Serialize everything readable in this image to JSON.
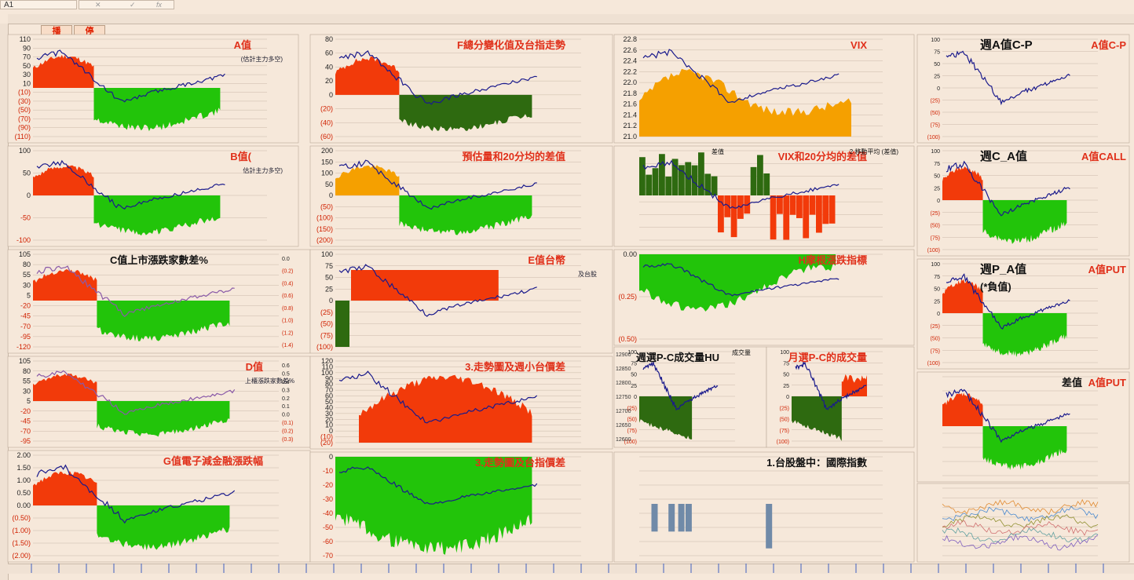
{
  "namebox": {
    "cell_ref": "A1"
  },
  "buttons": {
    "play": "播",
    "stop": "停"
  },
  "colors": {
    "red": "#f23a0a",
    "green": "#22c40a",
    "darkgreen": "#2e6a10",
    "orange": "#f5a000",
    "navy": "#1a1a8c",
    "purple": "#8a5aa8",
    "panel_bg": "#f6e8da"
  },
  "panels": [
    {
      "title": "A值",
      "subtitle": "(估計主力多空)",
      "ticks": [
        "110",
        "90",
        "70",
        "50",
        "30",
        "10",
        "(10)",
        "(30)",
        "(50)",
        "(70)",
        "(90)",
        "(110)"
      ]
    },
    {
      "title": "F總分變化值及台指走勢",
      "ticks": [
        "80",
        "60",
        "40",
        "20",
        "0",
        "(20)",
        "(40)",
        "(60)"
      ]
    },
    {
      "title": "VIX",
      "ticks": [
        "22.8",
        "22.6",
        "22.4",
        "22.2",
        "22.0",
        "21.8",
        "21.6",
        "21.4",
        "21.2",
        "21.0"
      ]
    },
    {
      "title": "週A值C-P",
      "title2": "A值C-P",
      "ticks": [
        "100",
        "75",
        "50",
        "25",
        "0",
        "(25)",
        "(50)",
        "(75)",
        "(100)"
      ]
    },
    {
      "title": "B值(",
      "subtitle": "估計主力多空)",
      "ticks": [
        "100",
        "50",
        "0",
        "-50",
        "-100"
      ]
    },
    {
      "title": "預估量和20分均的差值",
      "ticks": [
        "200",
        "150",
        "100",
        "50",
        "0",
        "(50)",
        "(100)",
        "(150)",
        "(200)"
      ]
    },
    {
      "title": "VIX和20分均的差值",
      "legend": "2 移動平均 (差值)",
      "legend2": "差值"
    },
    {
      "title": "週C_A值",
      "title2": "A值CALL",
      "ticks": [
        "100",
        "75",
        "50",
        "25",
        "0",
        "(25)",
        "(50)",
        "(75)",
        "(100)"
      ]
    },
    {
      "title": "C值上市漲跌家數差%",
      "ticks": [
        "105",
        "80",
        "55",
        "30",
        "5",
        "-20",
        "-45",
        "-70",
        "-95",
        "-120"
      ],
      "ticks_right": [
        "0.0",
        "(0.2)",
        "(0.4)",
        "(0.6)",
        "(0.8)",
        "(1.0)",
        "(1.2)",
        "(1.4)"
      ]
    },
    {
      "title": "E值台幣",
      "subtitle": "及台股",
      "ticks": [
        "100",
        "75",
        "50",
        "25",
        "0",
        "(25)",
        "(50)",
        "(75)",
        "(100)"
      ]
    },
    {
      "title": "H摩根漲跌指標",
      "ticks": [
        "0.00",
        "(0.25)",
        "(0.50)"
      ]
    },
    {
      "title": "週P_A值",
      "title2": "A值PUT",
      "title3": "(*負值)",
      "ticks": [
        "100",
        "75",
        "50",
        "25",
        "0",
        "(25)",
        "(50)",
        "(75)",
        "(100)"
      ]
    },
    {
      "title": "D值",
      "subtitle": "上櫃漲跌家數差%",
      "ticks": [
        "105",
        "80",
        "55",
        "30",
        "5",
        "-20",
        "-45",
        "-70",
        "-95"
      ],
      "ticks_right": [
        "0.6",
        "0.5",
        "0.4",
        "0.3",
        "0.2",
        "0.1",
        "0.0",
        "(0.1)",
        "(0.2)",
        "(0.3)"
      ]
    },
    {
      "title": "3.走勢圖及週小台價差",
      "ticks": [
        "120",
        "110",
        "100",
        "90",
        "80",
        "70",
        "60",
        "50",
        "40",
        "30",
        "20",
        "10",
        "0",
        "(10)",
        "(20)"
      ]
    },
    {
      "title": "週選P-C成交量HU",
      "ticks": [
        "100",
        "75",
        "50",
        "25",
        "0",
        "(25)",
        "(50)",
        "(75)",
        "(100)"
      ],
      "ticks_left": [
        "12900",
        "12850",
        "12800",
        "12750",
        "12700",
        "12650",
        "12600"
      ],
      "legend": "成交量"
    },
    {
      "title": "月選P-C的成交量",
      "ticks": [
        "100",
        "75",
        "50",
        "25",
        "0",
        "(25)",
        "(50)",
        "(75)",
        "(100)"
      ]
    },
    {
      "title": "差值",
      "title2": "A值PUT"
    },
    {
      "title": "G值電子減金融漲跌幅",
      "ticks": [
        "2.00",
        "1.50",
        "1.00",
        "0.50",
        "0.00",
        "(0.50)",
        "(1.00)",
        "(1.50)",
        "(2.00)"
      ]
    },
    {
      "title": "3.走勢圖及台指價差",
      "ticks": [
        "0",
        "-10",
        "-20",
        "-30",
        "-40",
        "-50",
        "-60",
        "-70"
      ]
    },
    {
      "title": "1.台股盤中：國際指數",
      "ticks": []
    },
    {
      "title": "",
      "ticks": []
    }
  ]
}
